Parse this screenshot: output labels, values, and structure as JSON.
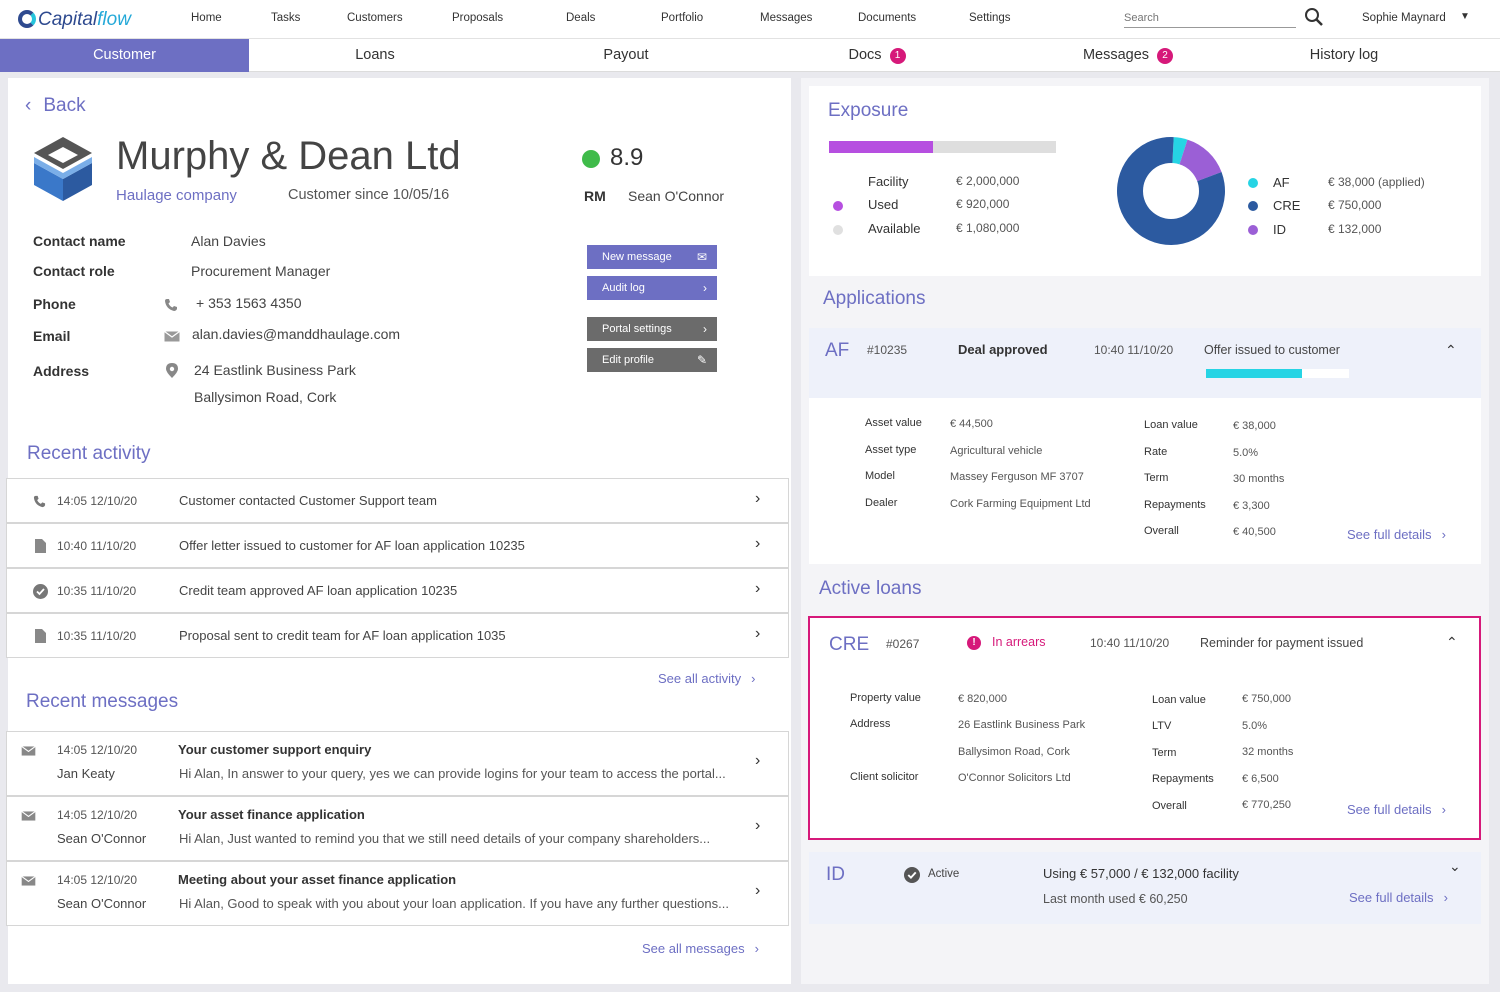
{
  "nav": {
    "logo_cap": "Capital",
    "logo_flow": "flow",
    "links": [
      "Home",
      "Tasks",
      "Customers",
      "Proposals",
      "Deals",
      "Portfolio",
      "Messages",
      "Documents",
      "Settings"
    ],
    "search_placeholder": "Search",
    "user": "Sophie Maynard"
  },
  "tabs": [
    {
      "label": "Customer"
    },
    {
      "label": "Loans"
    },
    {
      "label": "Payout"
    },
    {
      "label": "Docs",
      "badge": "1"
    },
    {
      "label": "Messages",
      "badge": "2"
    },
    {
      "label": "History log"
    }
  ],
  "customer": {
    "back": "Back",
    "name": "Murphy & Dean Ltd",
    "type": "Haulage company",
    "since": "Customer since 10/05/16",
    "score": "8.9",
    "rm_label": "RM",
    "rm_name": "Sean O'Connor",
    "contact_name_label": "Contact name",
    "contact_name": "Alan Davies",
    "contact_role_label": "Contact role",
    "contact_role": "Procurement Manager",
    "phone_label": "Phone",
    "phone": "+ 353 1563 4350",
    "email_label": "Email",
    "email": "alan.davies@manddhaulage.com",
    "address_label": "Address",
    "address1": "24 Eastlink Business Park",
    "address2": "Ballysimon Road, Cork",
    "buttons": {
      "new_message": "New message",
      "audit_log": "Audit log",
      "portal_settings": "Portal settings",
      "edit_profile": "Edit profile"
    }
  },
  "activity": {
    "title": "Recent activity",
    "items": [
      {
        "time": "14:05  12/10/20",
        "text": "Customer contacted Customer Support team"
      },
      {
        "time": "10:40  11/10/20",
        "text": "Offer letter issued to customer for AF loan application 10235"
      },
      {
        "time": "10:35  11/10/20",
        "text": "Credit team approved AF loan application 10235"
      },
      {
        "time": "10:35  11/10/20",
        "text": "Proposal sent to credit team for AF loan application 1035"
      }
    ],
    "see_all": "See all activity"
  },
  "messages": {
    "title": "Recent messages",
    "items": [
      {
        "time": "14:05  12/10/20",
        "from": "Jan Keaty",
        "subject": "Your customer support enquiry",
        "body": "Hi Alan, In answer to your query, yes we can provide logins for your team to access the portal..."
      },
      {
        "time": "14:05  12/10/20",
        "from": "Sean O'Connor",
        "subject": "Your asset finance application",
        "body": "Hi Alan, Just wanted to remind you that we still need details of your company shareholders..."
      },
      {
        "time": "14:05  12/10/20",
        "from": "Sean O'Connor",
        "subject": "Meeting about your asset finance application",
        "body": "Hi Alan, Good to speak with you about your loan application. If you have any further questions..."
      }
    ],
    "see_all": "See all messages"
  },
  "exposure": {
    "title": "Exposure",
    "used_fraction": 0.46,
    "rows": [
      {
        "label": "Facility",
        "value": "€ 2,000,000"
      },
      {
        "label": "Used",
        "value": "€ 920,000"
      },
      {
        "label": "Available",
        "value": "€ 1,080,000"
      }
    ],
    "legend": [
      {
        "label": "AF",
        "value": "€ 38,000 (applied)",
        "color": "#26d4e4",
        "amount": 38000
      },
      {
        "label": "CRE",
        "value": "€ 750,000",
        "color": "#2c5aa0",
        "amount": 750000
      },
      {
        "label": "ID",
        "value": "€ 132,000",
        "color": "#9b5fd6",
        "amount": 132000
      }
    ]
  },
  "applications": {
    "title": "Applications",
    "type": "AF",
    "id": "#10235",
    "status": "Deal approved",
    "time": "10:40  11/10/20",
    "note": "Offer issued to customer",
    "progress": 0.67,
    "left": [
      {
        "label": "Asset value",
        "value": "€ 44,500"
      },
      {
        "label": "Asset type",
        "value": "Agricultural vehicle"
      },
      {
        "label": "Model",
        "value": "Massey Ferguson MF 3707"
      },
      {
        "label": "Dealer",
        "value": "Cork Farming Equipment Ltd"
      }
    ],
    "right": [
      {
        "label": "Loan value",
        "value": "€ 38,000"
      },
      {
        "label": "Rate",
        "value": "5.0%"
      },
      {
        "label": "Term",
        "value": "30 months"
      },
      {
        "label": "Repayments",
        "value": "€ 3,300"
      },
      {
        "label": "Overall",
        "value": "€ 40,500"
      }
    ],
    "see_full": "See full details"
  },
  "active_loans": {
    "title": "Active loans",
    "cre": {
      "type": "CRE",
      "id": "#0267",
      "status": "In arrears",
      "time": "10:40  11/10/20",
      "note": "Reminder for payment issued",
      "left": [
        {
          "label": "Property value",
          "value": "€ 820,000"
        },
        {
          "label": "Address",
          "value": "26 Eastlink Business Park"
        },
        {
          "label": "",
          "value": "Ballysimon Road, Cork"
        },
        {
          "label": "Client solicitor",
          "value": "O'Connor Solicitors Ltd"
        }
      ],
      "right": [
        {
          "label": "Loan value",
          "value": "€ 750,000"
        },
        {
          "label": "LTV",
          "value": "5.0%"
        },
        {
          "label": "Term",
          "value": "32 months"
        },
        {
          "label": "Repayments",
          "value": "€ 6,500"
        },
        {
          "label": "Overall",
          "value": "€ 770,250"
        }
      ],
      "see_full": "See full details"
    },
    "id": {
      "type": "ID",
      "status": "Active",
      "using": "Using € 57,000 / € 132,000 facility",
      "last_month": "Last month used € 60,250",
      "see_full": "See full details"
    }
  }
}
